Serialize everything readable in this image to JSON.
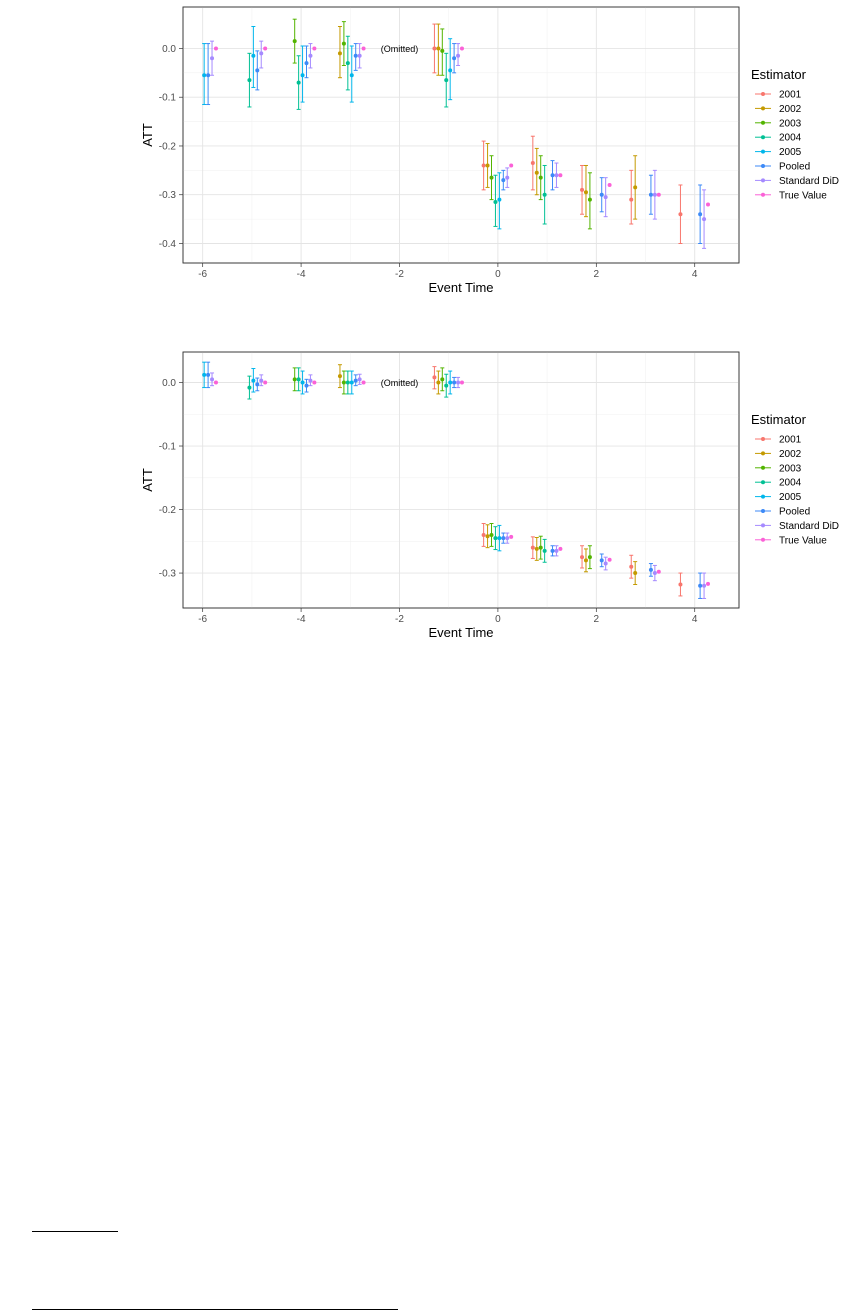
{
  "palette": {
    "2001": "#F8766D",
    "2002": "#C49A00",
    "2003": "#53B400",
    "2004": "#00C094",
    "2005": "#00B6EB",
    "Pooled": "#3D8AF7",
    "Standard DiD": "#A58AFF",
    "True Value": "#FB61D7"
  },
  "chart_data": [
    {
      "type": "scatter",
      "xlabel": "Event Time",
      "ylabel": "ATT",
      "legend_title": "Estimator",
      "legend_position": "right",
      "legend_entries": [
        "2001",
        "2002",
        "2003",
        "2004",
        "2005",
        "Pooled",
        "Standard DiD",
        "True Value"
      ],
      "annotation": {
        "text": "(Omitted)",
        "x": -2,
        "y": 0.0
      },
      "xlim": [
        -6.4,
        4.9
      ],
      "ylim": [
        -0.44,
        0.085
      ],
      "x_ticks": [
        -6,
        -4,
        -2,
        0,
        2,
        4
      ],
      "y_ticks": [
        0.0,
        -0.1,
        -0.2,
        -0.3,
        -0.4
      ],
      "y_tick_labels": [
        "0.0",
        "-0.1",
        "-0.2",
        "-0.3",
        "-0.4"
      ],
      "x_tick_labels": [
        "-6",
        "-4",
        "-2",
        "0",
        "2",
        "4"
      ],
      "grid": true,
      "series": [
        {
          "name": "2001",
          "points": [
            {
              "x": -1,
              "y": 0.0,
              "lo": -0.05,
              "hi": 0.05
            },
            {
              "x": 0,
              "y": -0.24,
              "lo": -0.29,
              "hi": -0.19
            },
            {
              "x": 1,
              "y": -0.235,
              "lo": -0.29,
              "hi": -0.18
            },
            {
              "x": 2,
              "y": -0.29,
              "lo": -0.34,
              "hi": -0.24
            },
            {
              "x": 3,
              "y": -0.31,
              "lo": -0.36,
              "hi": -0.25
            },
            {
              "x": 4,
              "y": -0.34,
              "lo": -0.4,
              "hi": -0.28
            }
          ]
        },
        {
          "name": "2002",
          "points": [
            {
              "x": -3,
              "y": -0.01,
              "lo": -0.06,
              "hi": 0.045
            },
            {
              "x": -1,
              "y": 0.0,
              "lo": -0.055,
              "hi": 0.05
            },
            {
              "x": 0,
              "y": -0.24,
              "lo": -0.285,
              "hi": -0.195
            },
            {
              "x": 1,
              "y": -0.255,
              "lo": -0.3,
              "hi": -0.205
            },
            {
              "x": 2,
              "y": -0.295,
              "lo": -0.345,
              "hi": -0.24
            },
            {
              "x": 3,
              "y": -0.285,
              "lo": -0.35,
              "hi": -0.22
            }
          ]
        },
        {
          "name": "2003",
          "points": [
            {
              "x": -4,
              "y": 0.015,
              "lo": -0.03,
              "hi": 0.06
            },
            {
              "x": -3,
              "y": 0.01,
              "lo": -0.035,
              "hi": 0.055
            },
            {
              "x": -1,
              "y": -0.005,
              "lo": -0.055,
              "hi": 0.04
            },
            {
              "x": 0,
              "y": -0.265,
              "lo": -0.31,
              "hi": -0.22
            },
            {
              "x": 1,
              "y": -0.265,
              "lo": -0.31,
              "hi": -0.22
            },
            {
              "x": 2,
              "y": -0.31,
              "lo": -0.37,
              "hi": -0.255
            }
          ]
        },
        {
          "name": "2004",
          "points": [
            {
              "x": -5,
              "y": -0.065,
              "lo": -0.12,
              "hi": -0.01
            },
            {
              "x": -4,
              "y": -0.07,
              "lo": -0.125,
              "hi": -0.015
            },
            {
              "x": -3,
              "y": -0.03,
              "lo": -0.085,
              "hi": 0.025
            },
            {
              "x": -1,
              "y": -0.065,
              "lo": -0.12,
              "hi": -0.01
            },
            {
              "x": 0,
              "y": -0.315,
              "lo": -0.365,
              "hi": -0.26
            },
            {
              "x": 1,
              "y": -0.3,
              "lo": -0.36,
              "hi": -0.24
            }
          ]
        },
        {
          "name": "2005",
          "points": [
            {
              "x": -6,
              "y": -0.055,
              "lo": -0.115,
              "hi": 0.01
            },
            {
              "x": -5,
              "y": -0.015,
              "lo": -0.08,
              "hi": 0.045
            },
            {
              "x": -4,
              "y": -0.055,
              "lo": -0.11,
              "hi": 0.005
            },
            {
              "x": -3,
              "y": -0.055,
              "lo": -0.11,
              "hi": 0.005
            },
            {
              "x": -1,
              "y": -0.045,
              "lo": -0.105,
              "hi": 0.02
            },
            {
              "x": 0,
              "y": -0.31,
              "lo": -0.37,
              "hi": -0.255
            }
          ]
        },
        {
          "name": "Pooled",
          "points": [
            {
              "x": -6,
              "y": -0.055,
              "lo": -0.115,
              "hi": 0.01
            },
            {
              "x": -5,
              "y": -0.045,
              "lo": -0.085,
              "hi": -0.005
            },
            {
              "x": -4,
              "y": -0.03,
              "lo": -0.06,
              "hi": 0.005
            },
            {
              "x": -3,
              "y": -0.015,
              "lo": -0.045,
              "hi": 0.01
            },
            {
              "x": -1,
              "y": -0.02,
              "lo": -0.05,
              "hi": 0.01
            },
            {
              "x": 0,
              "y": -0.27,
              "lo": -0.29,
              "hi": -0.25
            },
            {
              "x": 1,
              "y": -0.26,
              "lo": -0.29,
              "hi": -0.23
            },
            {
              "x": 2,
              "y": -0.3,
              "lo": -0.335,
              "hi": -0.265
            },
            {
              "x": 3,
              "y": -0.3,
              "lo": -0.34,
              "hi": -0.26
            },
            {
              "x": 4,
              "y": -0.34,
              "lo": -0.4,
              "hi": -0.28
            }
          ]
        },
        {
          "name": "Standard DiD",
          "points": [
            {
              "x": -6,
              "y": -0.02,
              "lo": -0.055,
              "hi": 0.015
            },
            {
              "x": -5,
              "y": -0.01,
              "lo": -0.04,
              "hi": 0.015
            },
            {
              "x": -4,
              "y": -0.015,
              "lo": -0.04,
              "hi": 0.01
            },
            {
              "x": -3,
              "y": -0.015,
              "lo": -0.04,
              "hi": 0.01
            },
            {
              "x": -1,
              "y": -0.015,
              "lo": -0.035,
              "hi": 0.01
            },
            {
              "x": 0,
              "y": -0.265,
              "lo": -0.285,
              "hi": -0.245
            },
            {
              "x": 1,
              "y": -0.26,
              "lo": -0.285,
              "hi": -0.235
            },
            {
              "x": 2,
              "y": -0.305,
              "lo": -0.345,
              "hi": -0.265
            },
            {
              "x": 3,
              "y": -0.3,
              "lo": -0.35,
              "hi": -0.25
            },
            {
              "x": 4,
              "y": -0.35,
              "lo": -0.41,
              "hi": -0.29
            }
          ]
        },
        {
          "name": "True Value",
          "points": [
            {
              "x": -6,
              "y": 0.0
            },
            {
              "x": -5,
              "y": 0.0
            },
            {
              "x": -4,
              "y": 0.0
            },
            {
              "x": -3,
              "y": 0.0
            },
            {
              "x": -1,
              "y": 0.0
            },
            {
              "x": 0,
              "y": -0.24
            },
            {
              "x": 1,
              "y": -0.26
            },
            {
              "x": 2,
              "y": -0.28
            },
            {
              "x": 3,
              "y": -0.3
            },
            {
              "x": 4,
              "y": -0.32
            }
          ]
        }
      ]
    },
    {
      "type": "scatter",
      "xlabel": "Event Time",
      "ylabel": "ATT",
      "legend_title": "Estimator",
      "legend_position": "right",
      "legend_entries": [
        "2001",
        "2002",
        "2003",
        "2004",
        "2005",
        "Pooled",
        "Standard DiD",
        "True Value"
      ],
      "annotation": {
        "text": "(Omitted)",
        "x": -2,
        "y": 0.0
      },
      "xlim": [
        -6.4,
        4.9
      ],
      "ylim": [
        -0.355,
        0.048
      ],
      "x_ticks": [
        -6,
        -4,
        -2,
        0,
        2,
        4
      ],
      "y_ticks": [
        0.0,
        -0.1,
        -0.2,
        -0.3
      ],
      "y_tick_labels": [
        "0.0",
        "-0.1",
        "-0.2",
        "-0.3"
      ],
      "x_tick_labels": [
        "-6",
        "-4",
        "-2",
        "0",
        "2",
        "4"
      ],
      "grid": true,
      "series": [
        {
          "name": "2001",
          "points": [
            {
              "x": -1,
              "y": 0.008,
              "lo": -0.01,
              "hi": 0.025
            },
            {
              "x": 0,
              "y": -0.24,
              "lo": -0.258,
              "hi": -0.222
            },
            {
              "x": 1,
              "y": -0.26,
              "lo": -0.277,
              "hi": -0.243
            },
            {
              "x": 2,
              "y": -0.275,
              "lo": -0.292,
              "hi": -0.257
            },
            {
              "x": 3,
              "y": -0.29,
              "lo": -0.308,
              "hi": -0.272
            },
            {
              "x": 4,
              "y": -0.318,
              "lo": -0.336,
              "hi": -0.3
            }
          ]
        },
        {
          "name": "2002",
          "points": [
            {
              "x": -3,
              "y": 0.01,
              "lo": -0.008,
              "hi": 0.028
            },
            {
              "x": -1,
              "y": 0.0,
              "lo": -0.018,
              "hi": 0.018
            },
            {
              "x": 0,
              "y": -0.242,
              "lo": -0.26,
              "hi": -0.224
            },
            {
              "x": 1,
              "y": -0.262,
              "lo": -0.28,
              "hi": -0.244
            },
            {
              "x": 2,
              "y": -0.28,
              "lo": -0.298,
              "hi": -0.262
            },
            {
              "x": 3,
              "y": -0.3,
              "lo": -0.318,
              "hi": -0.282
            }
          ]
        },
        {
          "name": "2003",
          "points": [
            {
              "x": -4,
              "y": 0.005,
              "lo": -0.013,
              "hi": 0.023
            },
            {
              "x": -3,
              "y": 0.0,
              "lo": -0.018,
              "hi": 0.018
            },
            {
              "x": -1,
              "y": 0.005,
              "lo": -0.013,
              "hi": 0.023
            },
            {
              "x": 0,
              "y": -0.24,
              "lo": -0.258,
              "hi": -0.222
            },
            {
              "x": 1,
              "y": -0.26,
              "lo": -0.278,
              "hi": -0.242
            },
            {
              "x": 2,
              "y": -0.275,
              "lo": -0.293,
              "hi": -0.257
            }
          ]
        },
        {
          "name": "2004",
          "points": [
            {
              "x": -5,
              "y": -0.008,
              "lo": -0.026,
              "hi": 0.01
            },
            {
              "x": -4,
              "y": 0.005,
              "lo": -0.013,
              "hi": 0.023
            },
            {
              "x": -3,
              "y": 0.0,
              "lo": -0.018,
              "hi": 0.018
            },
            {
              "x": -1,
              "y": -0.005,
              "lo": -0.023,
              "hi": 0.013
            },
            {
              "x": 0,
              "y": -0.245,
              "lo": -0.263,
              "hi": -0.227
            },
            {
              "x": 1,
              "y": -0.265,
              "lo": -0.283,
              "hi": -0.247
            }
          ]
        },
        {
          "name": "2005",
          "points": [
            {
              "x": -6,
              "y": 0.012,
              "lo": -0.008,
              "hi": 0.032
            },
            {
              "x": -5,
              "y": 0.003,
              "lo": -0.015,
              "hi": 0.022
            },
            {
              "x": -4,
              "y": 0.0,
              "lo": -0.018,
              "hi": 0.018
            },
            {
              "x": -3,
              "y": 0.0,
              "lo": -0.018,
              "hi": 0.018
            },
            {
              "x": -1,
              "y": 0.0,
              "lo": -0.018,
              "hi": 0.018
            },
            {
              "x": 0,
              "y": -0.245,
              "lo": -0.265,
              "hi": -0.225
            }
          ]
        },
        {
          "name": "Pooled",
          "points": [
            {
              "x": -6,
              "y": 0.012,
              "lo": -0.008,
              "hi": 0.032
            },
            {
              "x": -5,
              "y": -0.003,
              "lo": -0.013,
              "hi": 0.007
            },
            {
              "x": -4,
              "y": -0.005,
              "lo": -0.015,
              "hi": 0.005
            },
            {
              "x": -3,
              "y": 0.003,
              "lo": -0.005,
              "hi": 0.012
            },
            {
              "x": -1,
              "y": 0.0,
              "lo": -0.008,
              "hi": 0.008
            },
            {
              "x": 0,
              "y": -0.245,
              "lo": -0.253,
              "hi": -0.237
            },
            {
              "x": 1,
              "y": -0.265,
              "lo": -0.273,
              "hi": -0.257
            },
            {
              "x": 2,
              "y": -0.28,
              "lo": -0.29,
              "hi": -0.27
            },
            {
              "x": 3,
              "y": -0.295,
              "lo": -0.305,
              "hi": -0.285
            },
            {
              "x": 4,
              "y": -0.32,
              "lo": -0.34,
              "hi": -0.3
            }
          ]
        },
        {
          "name": "Standard DiD",
          "points": [
            {
              "x": -6,
              "y": 0.005,
              "lo": -0.005,
              "hi": 0.015
            },
            {
              "x": -5,
              "y": 0.003,
              "lo": -0.005,
              "hi": 0.012
            },
            {
              "x": -4,
              "y": 0.003,
              "lo": -0.005,
              "hi": 0.012
            },
            {
              "x": -3,
              "y": 0.005,
              "lo": -0.003,
              "hi": 0.013
            },
            {
              "x": -1,
              "y": 0.0,
              "lo": -0.008,
              "hi": 0.008
            },
            {
              "x": 0,
              "y": -0.245,
              "lo": -0.253,
              "hi": -0.237
            },
            {
              "x": 1,
              "y": -0.265,
              "lo": -0.273,
              "hi": -0.257
            },
            {
              "x": 2,
              "y": -0.285,
              "lo": -0.295,
              "hi": -0.275
            },
            {
              "x": 3,
              "y": -0.3,
              "lo": -0.312,
              "hi": -0.288
            },
            {
              "x": 4,
              "y": -0.32,
              "lo": -0.34,
              "hi": -0.3
            }
          ]
        },
        {
          "name": "True Value",
          "points": [
            {
              "x": -6,
              "y": 0.0
            },
            {
              "x": -5,
              "y": 0.0
            },
            {
              "x": -4,
              "y": 0.0
            },
            {
              "x": -3,
              "y": 0.0
            },
            {
              "x": -1,
              "y": 0.0
            },
            {
              "x": 0,
              "y": -0.243
            },
            {
              "x": 1,
              "y": -0.262
            },
            {
              "x": 2,
              "y": -0.279
            },
            {
              "x": 3,
              "y": -0.298
            },
            {
              "x": 4,
              "y": -0.317
            }
          ]
        }
      ]
    }
  ]
}
